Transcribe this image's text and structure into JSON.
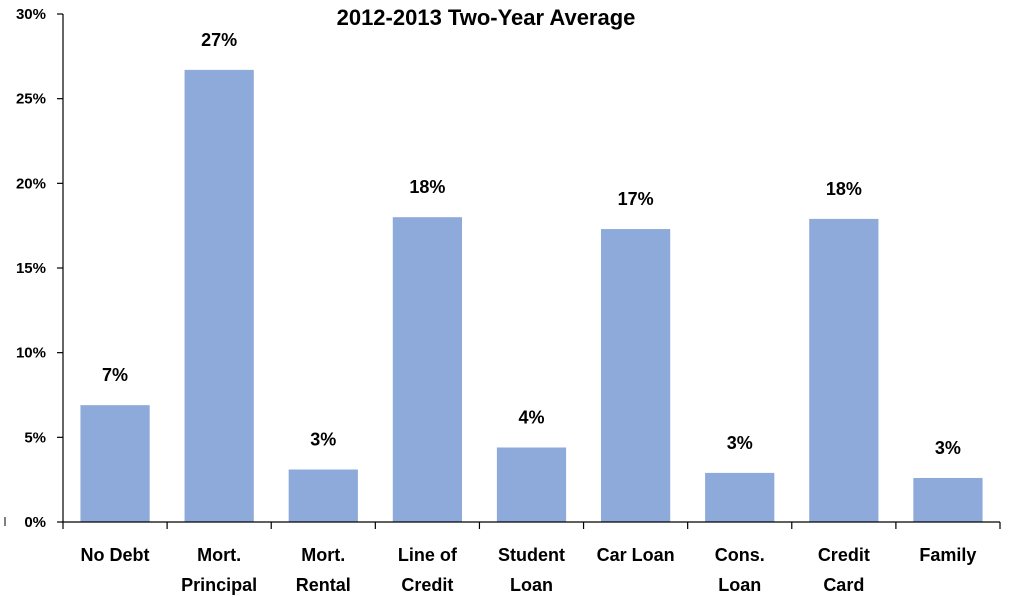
{
  "chart_data": {
    "type": "bar",
    "title": "2012-2013 Two-Year Average",
    "xlabel": "",
    "ylabel": "",
    "ylim": [
      0,
      30
    ],
    "y_ticks": [
      0,
      5,
      10,
      15,
      20,
      25,
      30
    ],
    "y_tick_labels": [
      "0%",
      "5%",
      "10%",
      "15%",
      "20%",
      "25%",
      "30%"
    ],
    "categories": [
      [
        "No Debt"
      ],
      [
        "Mort.",
        "Principal"
      ],
      [
        "Mort.",
        "Rental"
      ],
      [
        "Line of",
        "Credit"
      ],
      [
        "Student",
        "Loan"
      ],
      [
        "Car Loan"
      ],
      [
        "Cons.",
        "Loan"
      ],
      [
        "Credit",
        "Card"
      ],
      [
        "Family"
      ]
    ],
    "values": [
      6.9,
      26.7,
      3.1,
      18.0,
      4.4,
      17.3,
      2.9,
      17.9,
      2.6
    ],
    "data_labels": [
      "7%",
      "27%",
      "3%",
      "18%",
      "4%",
      "17%",
      "3%",
      "18%",
      "3%"
    ],
    "bar_color": "#8eaadb",
    "grid": false,
    "legend": "none"
  }
}
